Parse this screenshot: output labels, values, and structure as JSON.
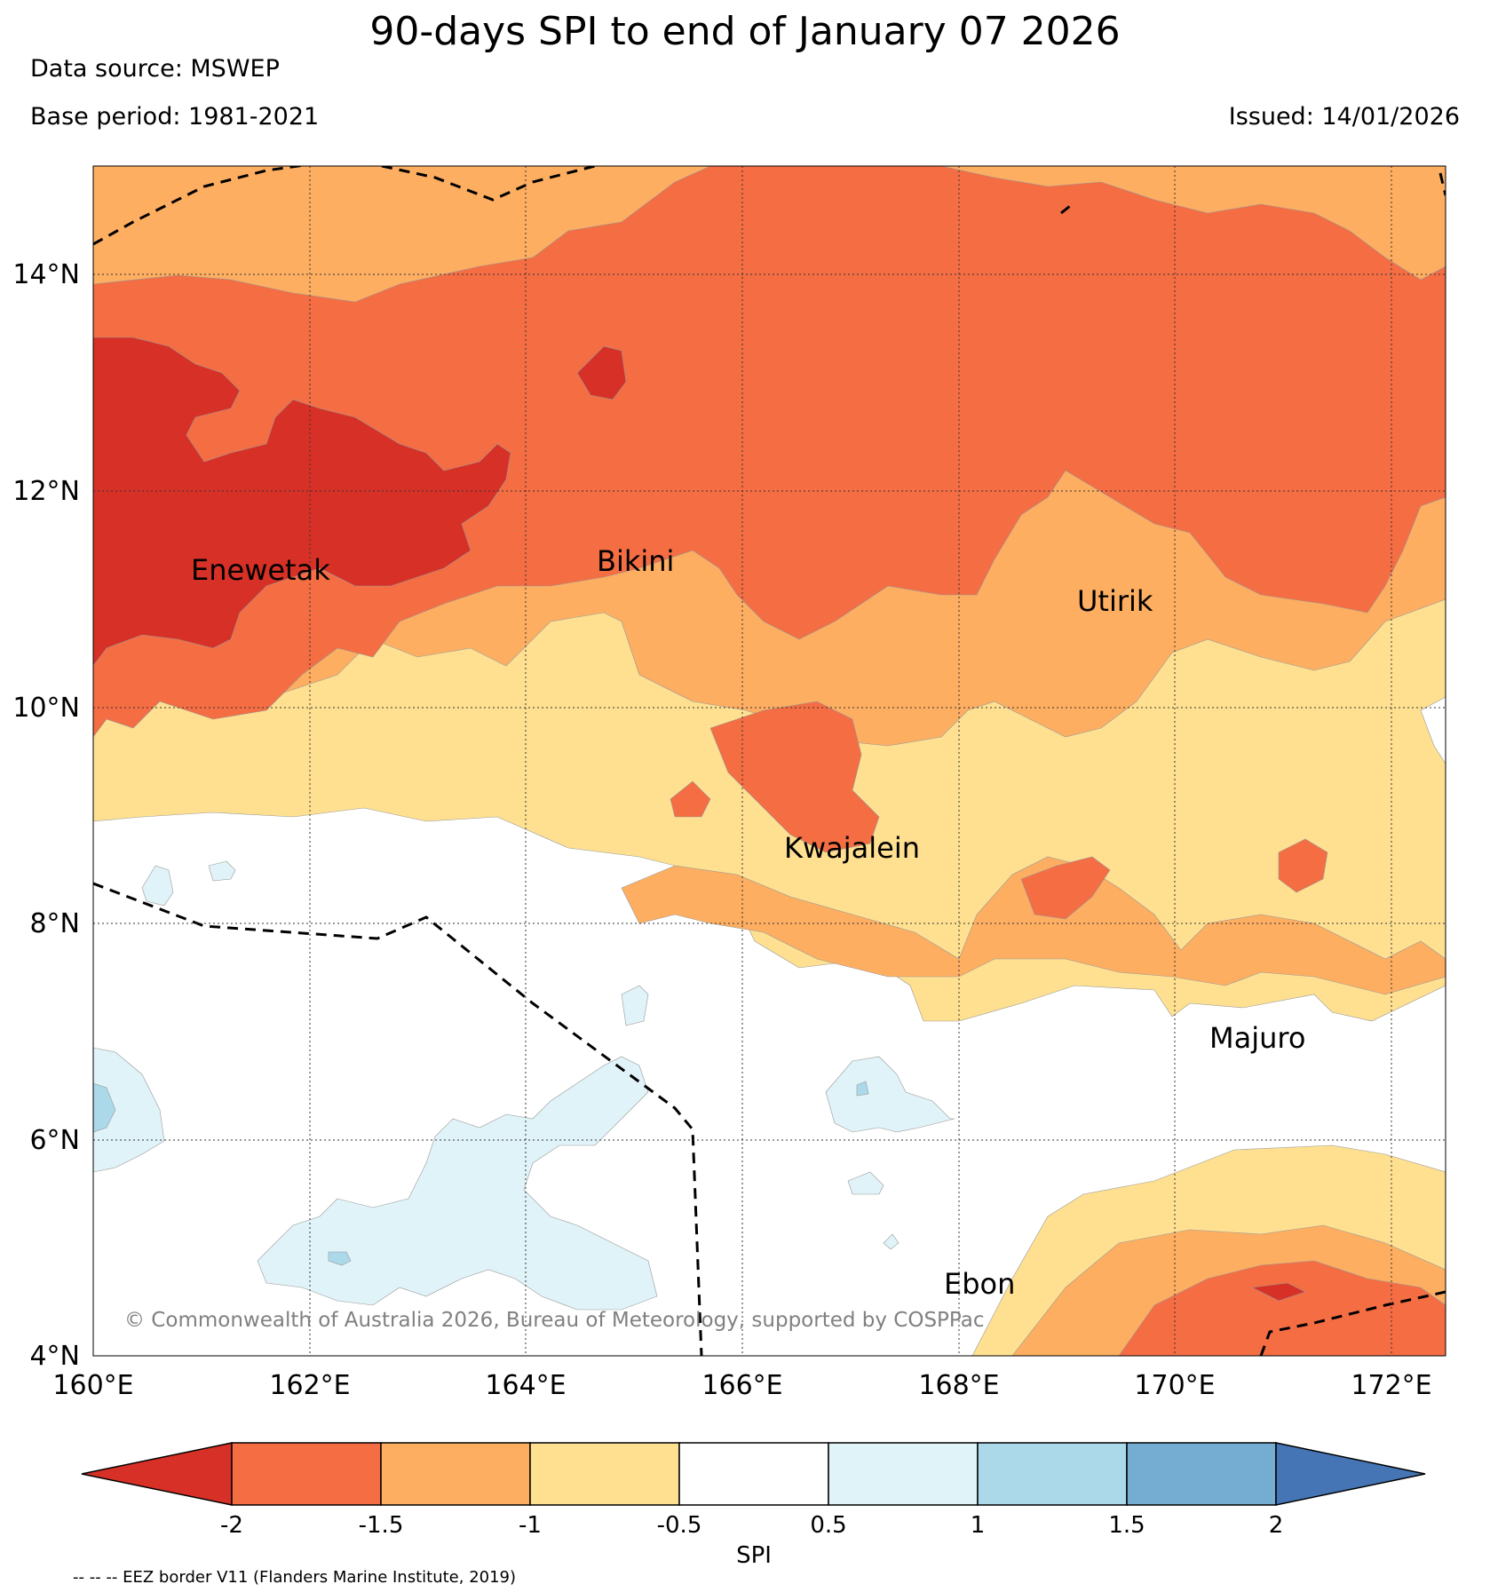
{
  "header": {
    "title": "90-days SPI to end of January 07 2026",
    "data_source": "Data source: MSWEP",
    "base_period": "Base period: 1981-2021",
    "issued": "Issued: 14/01/2026"
  },
  "map": {
    "lon_labels": [
      "160°E",
      "162°E",
      "164°E",
      "166°E",
      "168°E",
      "170°E",
      "172°E"
    ],
    "lat_labels": [
      "14°N",
      "12°N",
      "10°N",
      "8°N",
      "6°N",
      "4°N"
    ],
    "places": [
      "Enewetak",
      "Bikini",
      "Utirik",
      "Kwajalein",
      "Majuro",
      "Ebon"
    ],
    "copyright": "© Commonwealth of Australia 2026, Bureau of Meteorology, supported by COSPPac"
  },
  "colorbar": {
    "label": "SPI",
    "ticks": [
      "-2",
      "-1.5",
      "-1",
      "-0.5",
      "0.5",
      "1",
      "1.5",
      "2"
    ],
    "colors": [
      "#d73027",
      "#f46d43",
      "#fdae61",
      "#fee090",
      "#ffffff",
      "#e0f3f8",
      "#abd9e9",
      "#74add1",
      "#4575b4"
    ]
  },
  "footer": {
    "eez_note": "-- -- -- EEZ border V11 (Flanders Marine Institute, 2019)"
  }
}
